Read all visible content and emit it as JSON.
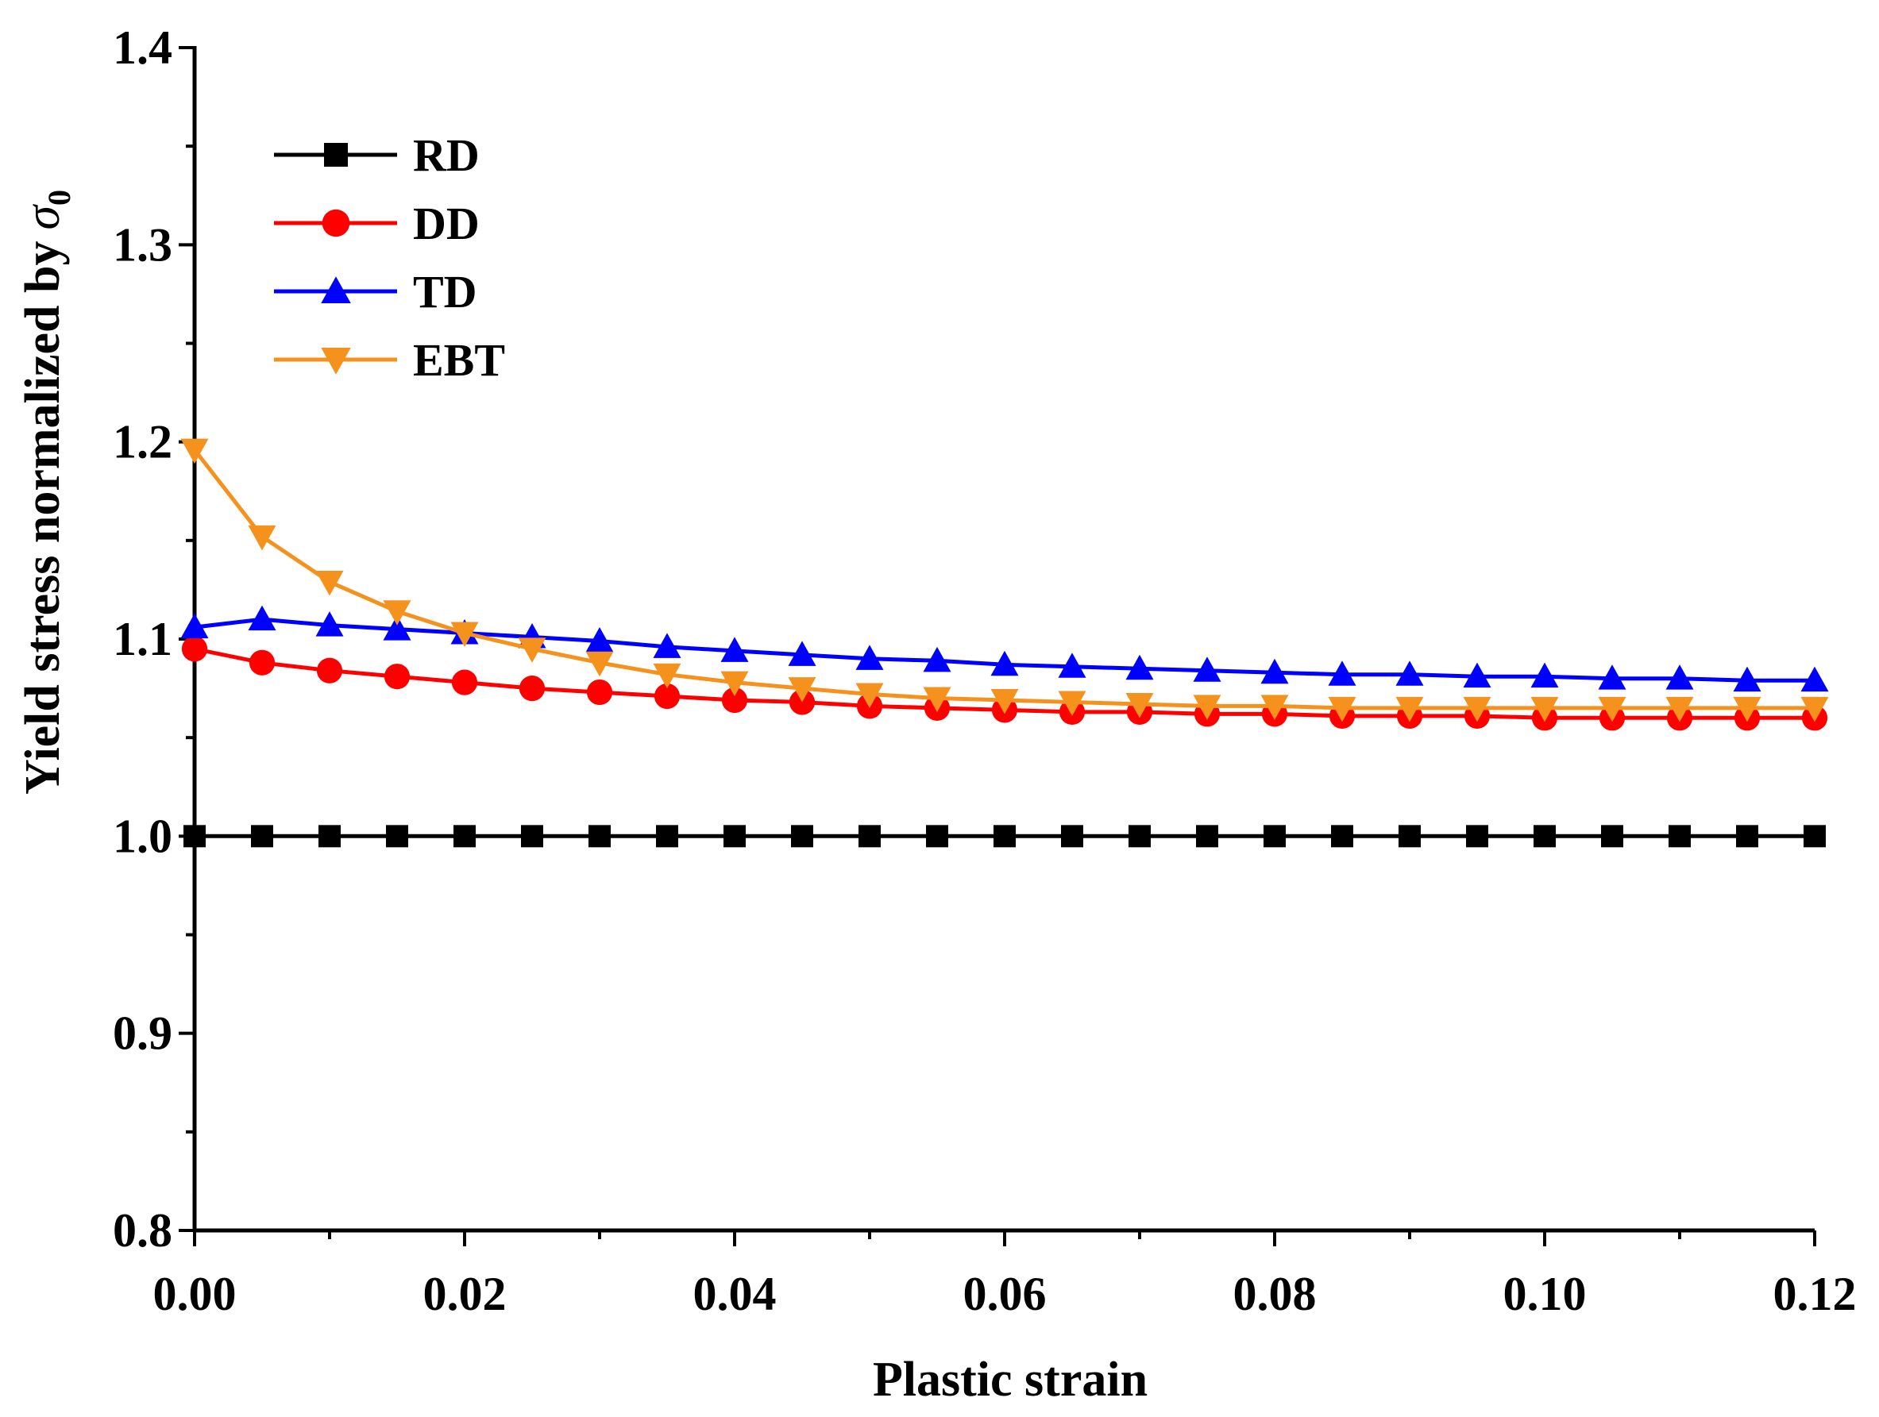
{
  "chart_data": {
    "type": "line",
    "title": "",
    "xlabel": "Plastic strain",
    "ylabel": "Yield stress normalized by",
    "ylabel_symbol": "σ",
    "ylabel_subscript": "0",
    "xlim": [
      0.0,
      0.12
    ],
    "ylim": [
      0.8,
      1.4
    ],
    "x_ticks": [
      "0.00",
      "0.02",
      "0.04",
      "0.06",
      "0.08",
      "0.10",
      "0.12"
    ],
    "y_ticks": [
      "0.8",
      "0.9",
      "1.0",
      "1.1",
      "1.2",
      "1.3",
      "1.4"
    ],
    "grid": false,
    "legend_position": "top-left",
    "x": [
      0.0,
      0.005,
      0.01,
      0.015,
      0.02,
      0.025,
      0.03,
      0.035,
      0.04,
      0.045,
      0.05,
      0.055,
      0.06,
      0.065,
      0.07,
      0.075,
      0.08,
      0.085,
      0.09,
      0.095,
      0.1,
      0.105,
      0.11,
      0.115,
      0.12
    ],
    "series": [
      {
        "name": "RD",
        "color": "#000000",
        "marker": "square",
        "values": [
          1.0,
          1.0,
          1.0,
          1.0,
          1.0,
          1.0,
          1.0,
          1.0,
          1.0,
          1.0,
          1.0,
          1.0,
          1.0,
          1.0,
          1.0,
          1.0,
          1.0,
          1.0,
          1.0,
          1.0,
          1.0,
          1.0,
          1.0,
          1.0,
          1.0
        ]
      },
      {
        "name": "DD",
        "color": "#ff0000",
        "marker": "circle",
        "values": [
          1.095,
          1.088,
          1.084,
          1.081,
          1.078,
          1.075,
          1.073,
          1.071,
          1.069,
          1.068,
          1.066,
          1.065,
          1.064,
          1.063,
          1.063,
          1.062,
          1.062,
          1.061,
          1.061,
          1.061,
          1.06,
          1.06,
          1.06,
          1.06,
          1.06
        ]
      },
      {
        "name": "TD",
        "color": "#0000ff",
        "marker": "triangle-up",
        "values": [
          1.106,
          1.11,
          1.107,
          1.105,
          1.103,
          1.101,
          1.099,
          1.096,
          1.094,
          1.092,
          1.09,
          1.089,
          1.087,
          1.086,
          1.085,
          1.084,
          1.083,
          1.082,
          1.082,
          1.081,
          1.081,
          1.08,
          1.08,
          1.079,
          1.079
        ]
      },
      {
        "name": "EBT",
        "color": "#f5921e",
        "marker": "triangle-down",
        "values": [
          1.196,
          1.152,
          1.129,
          1.114,
          1.103,
          1.095,
          1.088,
          1.082,
          1.078,
          1.075,
          1.072,
          1.07,
          1.069,
          1.068,
          1.067,
          1.066,
          1.066,
          1.065,
          1.065,
          1.065,
          1.065,
          1.065,
          1.065,
          1.065,
          1.065
        ]
      }
    ]
  }
}
